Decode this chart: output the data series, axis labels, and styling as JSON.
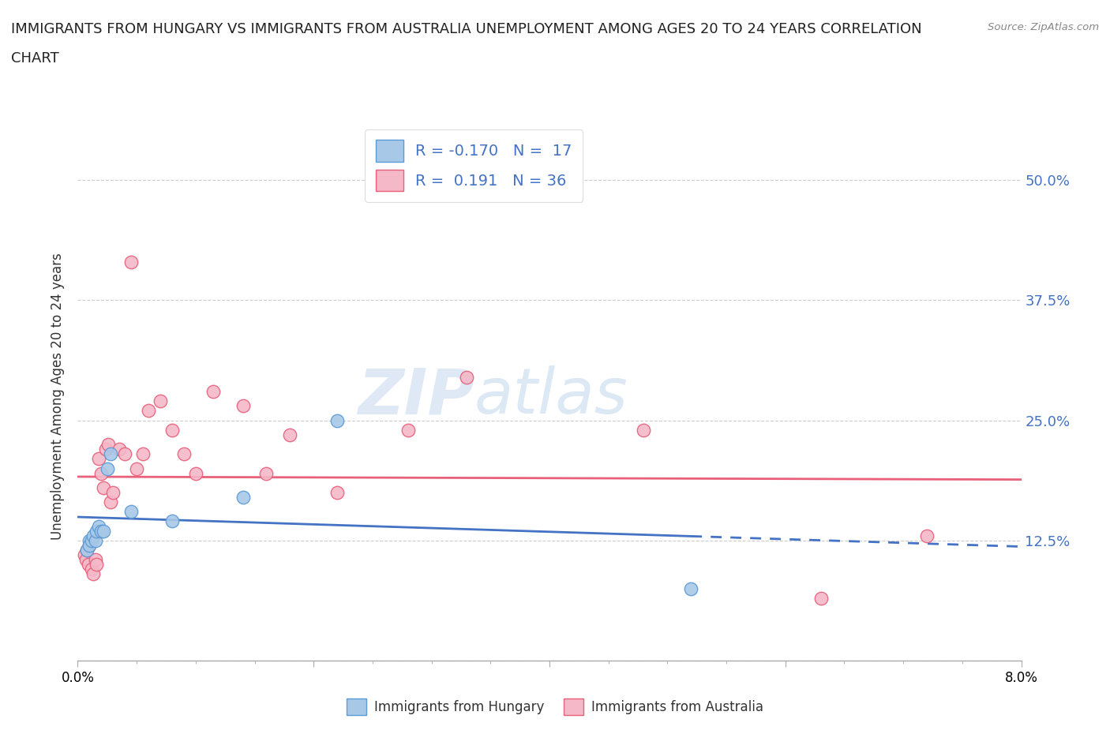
{
  "title_line1": "IMMIGRANTS FROM HUNGARY VS IMMIGRANTS FROM AUSTRALIA UNEMPLOYMENT AMONG AGES 20 TO 24 YEARS CORRELATION",
  "title_line2": "CHART",
  "source_text": "Source: ZipAtlas.com",
  "ylabel": "Unemployment Among Ages 20 to 24 years",
  "xlim": [
    0.0,
    0.08
  ],
  "ylim": [
    0.0,
    0.55
  ],
  "yticks": [
    0.0,
    0.125,
    0.25,
    0.375,
    0.5
  ],
  "ytick_labels": [
    "",
    "12.5%",
    "25.0%",
    "37.5%",
    "50.0%"
  ],
  "xticks": [
    0.0,
    0.02,
    0.04,
    0.06,
    0.08
  ],
  "xtick_labels": [
    "0.0%",
    "",
    "",
    "",
    "8.0%"
  ],
  "hungary_fill_color": "#a8c8e8",
  "hungary_edge_color": "#5b9bd5",
  "australia_fill_color": "#f4b8c8",
  "australia_edge_color": "#e8607a",
  "hungary_line_color": "#4472c4",
  "australia_line_color": "#e8607a",
  "right_axis_color": "#4472c4",
  "legend_hungary_r": "-0.170",
  "legend_hungary_n": "17",
  "legend_australia_r": "0.191",
  "legend_australia_n": "36",
  "watermark_zip": "ZIP",
  "watermark_atlas": "atlas",
  "hungary_x": [
    0.0008,
    0.001,
    0.001,
    0.0012,
    0.0013,
    0.0015,
    0.0016,
    0.0018,
    0.002,
    0.0022,
    0.0025,
    0.0028,
    0.0045,
    0.008,
    0.014,
    0.022,
    0.052
  ],
  "hungary_y": [
    0.115,
    0.125,
    0.12,
    0.125,
    0.13,
    0.125,
    0.135,
    0.14,
    0.135,
    0.135,
    0.2,
    0.215,
    0.155,
    0.145,
    0.17,
    0.25,
    0.075
  ],
  "australia_x": [
    0.0006,
    0.0007,
    0.0008,
    0.0009,
    0.001,
    0.0012,
    0.0013,
    0.0015,
    0.0016,
    0.0018,
    0.002,
    0.0022,
    0.0024,
    0.0026,
    0.0028,
    0.003,
    0.0035,
    0.004,
    0.0045,
    0.005,
    0.0055,
    0.006,
    0.007,
    0.008,
    0.009,
    0.01,
    0.0115,
    0.014,
    0.016,
    0.018,
    0.022,
    0.028,
    0.033,
    0.048,
    0.063,
    0.072
  ],
  "australia_y": [
    0.11,
    0.105,
    0.115,
    0.1,
    0.12,
    0.095,
    0.09,
    0.105,
    0.1,
    0.21,
    0.195,
    0.18,
    0.22,
    0.225,
    0.165,
    0.175,
    0.22,
    0.215,
    0.415,
    0.2,
    0.215,
    0.26,
    0.27,
    0.24,
    0.215,
    0.195,
    0.28,
    0.265,
    0.195,
    0.235,
    0.175,
    0.24,
    0.295,
    0.24,
    0.065,
    0.13
  ],
  "background_color": "#ffffff",
  "grid_color": "#cccccc",
  "grid_linestyle": "--"
}
